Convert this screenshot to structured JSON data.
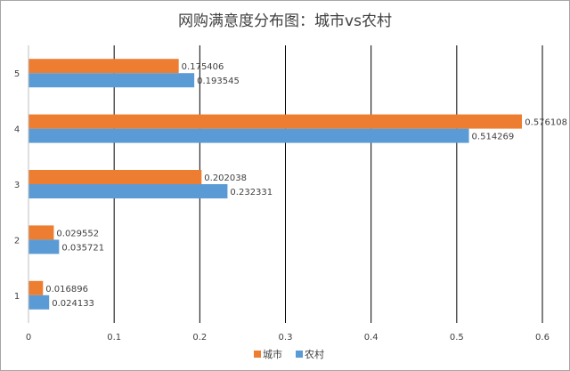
{
  "chart_data": {
    "type": "bar",
    "orientation": "horizontal",
    "title": "网购满意度分布图：城市vs农村",
    "categories": [
      "1",
      "2",
      "3",
      "4",
      "5"
    ],
    "series": [
      {
        "name": "城市",
        "color": "#ED7D31",
        "values": [
          0.016896,
          0.029552,
          0.202038,
          0.576108,
          0.175406
        ],
        "labels": [
          "0.016896",
          "0.029552",
          "0.202038",
          "0.576108",
          "0.175406"
        ]
      },
      {
        "name": "农村",
        "color": "#5B9BD5",
        "values": [
          0.024133,
          0.035721,
          0.232331,
          0.514269,
          0.193545
        ],
        "labels": [
          "0.024133",
          "0.035721",
          "0.232331",
          "0.514269",
          "0.193545"
        ]
      }
    ],
    "xlim": [
      0,
      0.6
    ],
    "xticks": [
      "0",
      "0.1",
      "0.2",
      "0.3",
      "0.4",
      "0.5",
      "0.6"
    ],
    "grid": true,
    "legend": "bottom",
    "xlabel": "",
    "ylabel": ""
  }
}
